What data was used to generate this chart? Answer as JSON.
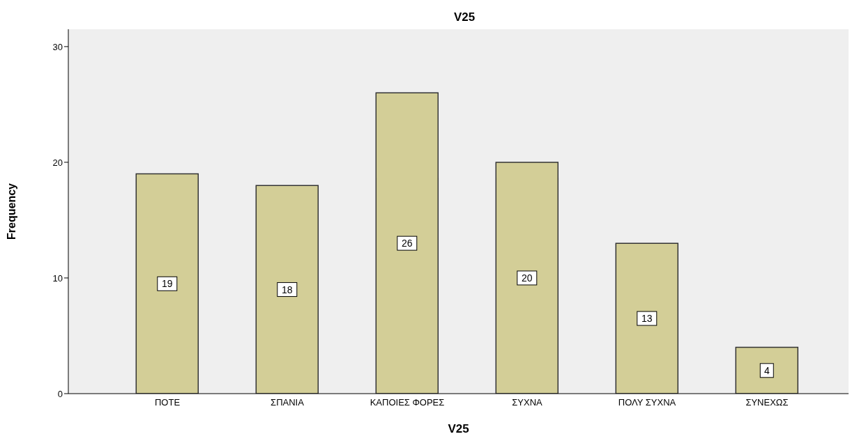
{
  "chart_data": {
    "type": "bar",
    "title": "V25",
    "xlabel": "V25",
    "ylabel": "Frequency",
    "categories": [
      "ΠΟΤΕ",
      "ΣΠΑΝΙΑ",
      "ΚΑΠΟΙΕΣ ΦΟΡΕΣ",
      "ΣΥΧΝΑ",
      "ΠΟΛΥ ΣΥΧΝΑ",
      "ΣΥΝΕΧΩΣ"
    ],
    "values": [
      19,
      18,
      26,
      20,
      13,
      4
    ],
    "color": "#d3ce97",
    "ylim": [
      0,
      31.5
    ],
    "yticks": [
      0,
      10,
      20,
      30
    ],
    "grid": false,
    "data_labels": true
  }
}
